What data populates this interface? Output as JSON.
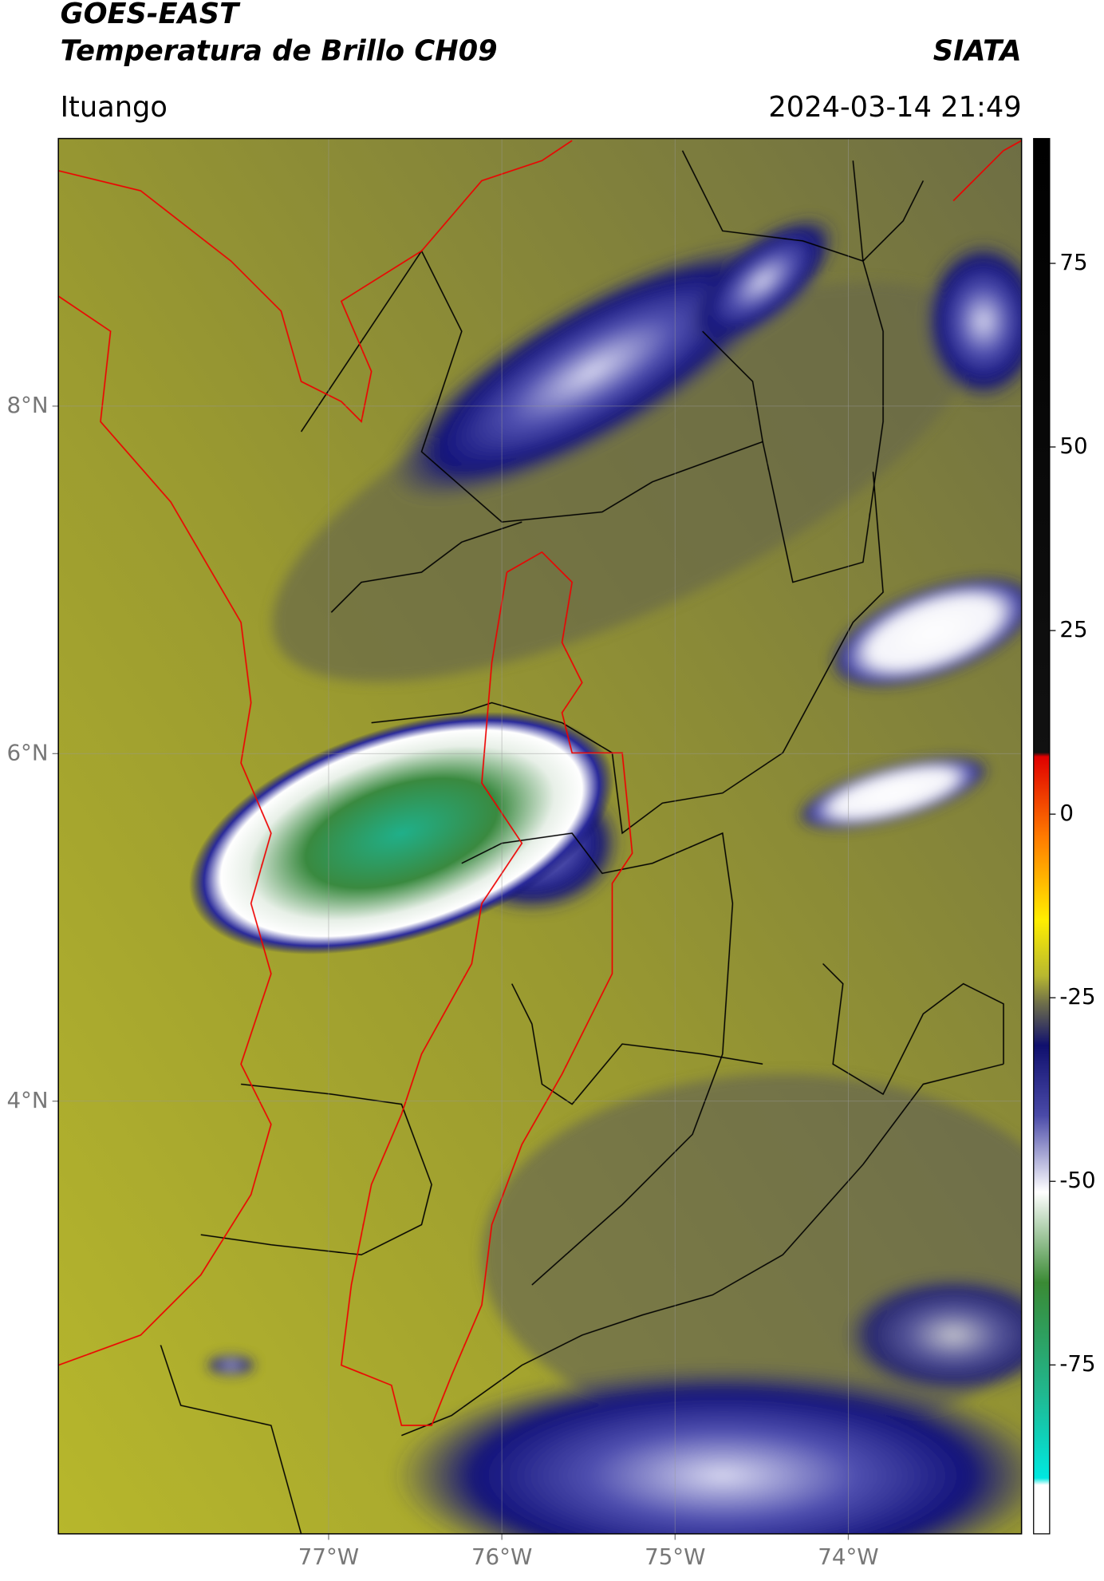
{
  "header": {
    "title": "GOES-EAST",
    "subtitle": "Temperatura de Brillo CH09",
    "source": "SIATA",
    "location": "Ituango",
    "datetime": "2024-03-14 21:49"
  },
  "map": {
    "xlim": [
      -78.56,
      -73.0
    ],
    "ylim": [
      1.51,
      9.54
    ],
    "xticks": [
      {
        "value": -77,
        "label": "77°W"
      },
      {
        "value": -76,
        "label": "76°W"
      },
      {
        "value": -75,
        "label": "75°W"
      },
      {
        "value": -74,
        "label": "74°W"
      }
    ],
    "yticks": [
      {
        "value": 8,
        "label": "8°N"
      },
      {
        "value": 6,
        "label": "6°N"
      },
      {
        "value": 4,
        "label": "4°N"
      }
    ],
    "grid": true
  },
  "colorbar": {
    "lim": [
      -98,
      92
    ],
    "ticks": [
      75,
      50,
      25,
      0,
      -25,
      -50,
      -75
    ]
  }
}
